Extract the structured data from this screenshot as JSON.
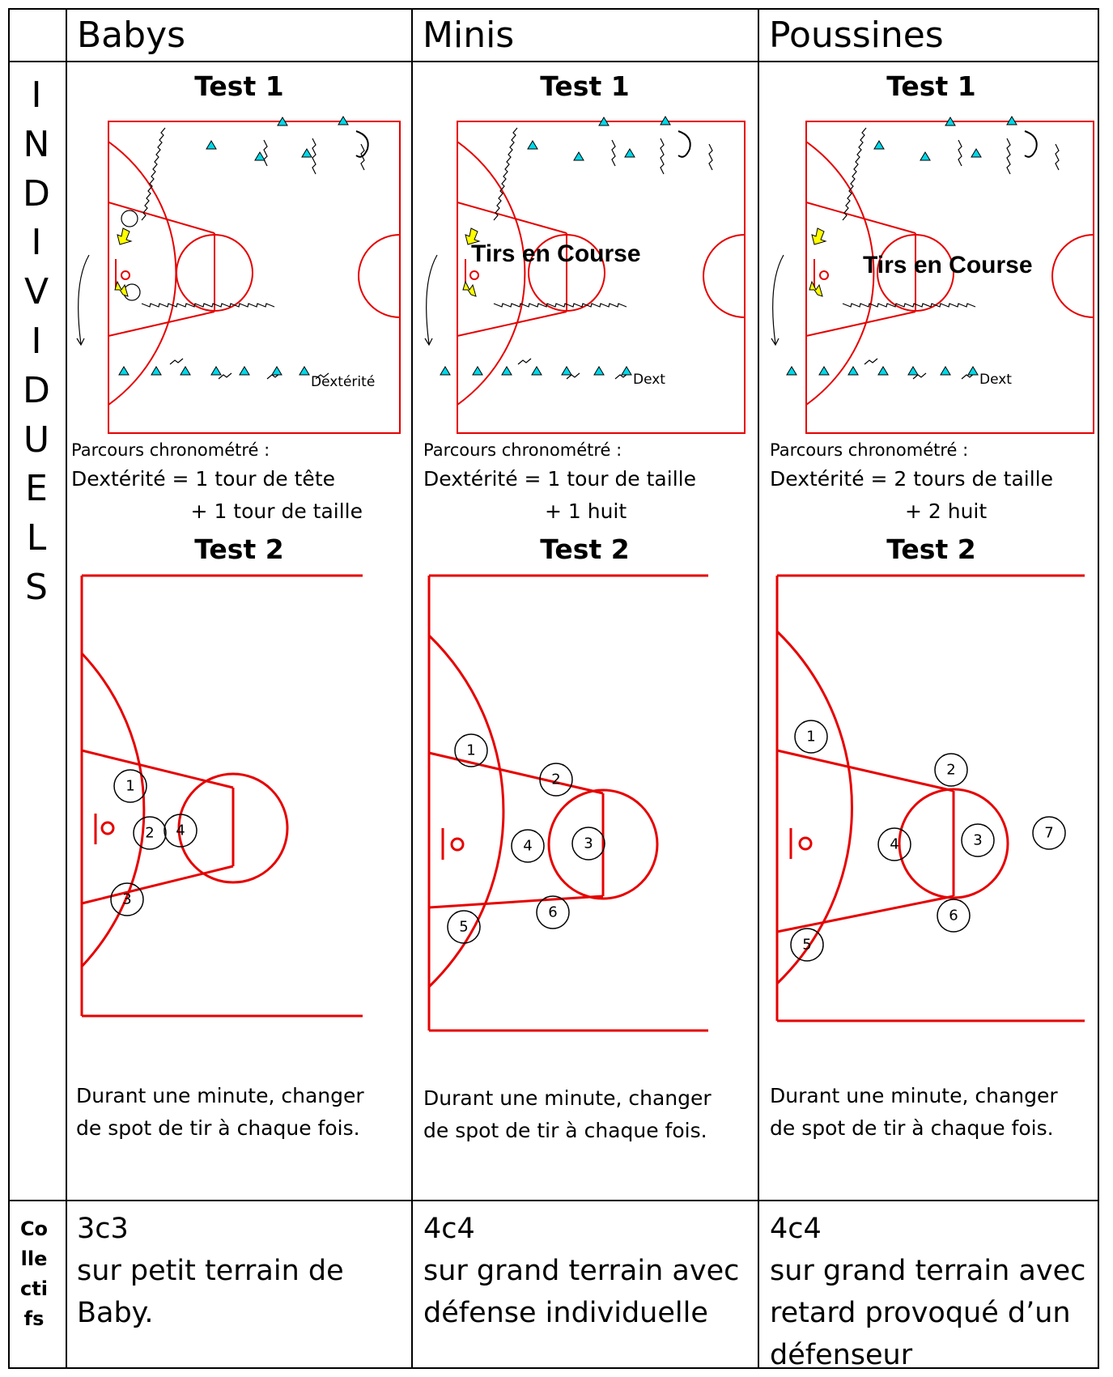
{
  "columns": [
    {
      "header": "Babys",
      "test1_title": "Test 1",
      "test1_overlay": "",
      "dext_label": "Dextérité",
      "test1_caption_line1": "Parcours chronométré :",
      "test1_caption_line2": "Dextérité = 1 tour de tête",
      "test1_caption_line3": "+ 1 tour de taille",
      "test2_title": "Test 2",
      "test2_caption_line1": "Durant une minute, changer",
      "test2_caption_line2": "de spot de tir à chaque fois.",
      "spots": [
        "1",
        "2",
        "3",
        "4"
      ],
      "collectif_line1": "3c3",
      "collectif_line2": "sur petit terrain de",
      "collectif_line3": "Baby."
    },
    {
      "header": "Minis",
      "test1_title": "Test 1",
      "test1_overlay": "Tirs en Course",
      "dext_label": "Dext",
      "test1_caption_line1": "Parcours chronométré :",
      "test1_caption_line2": "Dextérité = 1 tour de taille",
      "test1_caption_line3": "+ 1 huit",
      "test2_title": "Test 2",
      "test2_caption_line1": "Durant une minute, changer",
      "test2_caption_line2": "de spot de tir à chaque fois.",
      "spots": [
        "1",
        "2",
        "3",
        "4",
        "5",
        "6"
      ],
      "collectif_line1": "4c4",
      "collectif_line2": "sur grand terrain avec",
      "collectif_line3": "défense individuelle"
    },
    {
      "header": "Poussines",
      "test1_title": "Test 1",
      "test1_overlay": "Tirs en Course",
      "dext_label": "Dext",
      "test1_caption_line1": "Parcours chronométré :",
      "test1_caption_line2": "Dextérité = 2 tours de taille",
      "test1_caption_line3": "+ 2 huit",
      "test2_title": "Test 2",
      "test2_caption_line1": "Durant une minute, changer",
      "test2_caption_line2": "de spot de tir à chaque fois.",
      "spots": [
        "1",
        "2",
        "3",
        "4",
        "5",
        "6",
        "7"
      ],
      "collectif_line1": "4c4",
      "collectif_line2": "sur grand terrain avec",
      "collectif_line3": "retard provoqué d’un",
      "collectif_line4": "défenseur"
    }
  ],
  "row_label_individuels": [
    "I",
    "N",
    "D",
    "I",
    "V",
    "I",
    "D",
    "U",
    "E",
    "L",
    "S"
  ],
  "row_label_collectifs": [
    "Co",
    "lle",
    "cti",
    "fs"
  ],
  "colors": {
    "court_lines": "#e60000",
    "cones": "#00d8e8",
    "arrows": "#ffff00"
  }
}
